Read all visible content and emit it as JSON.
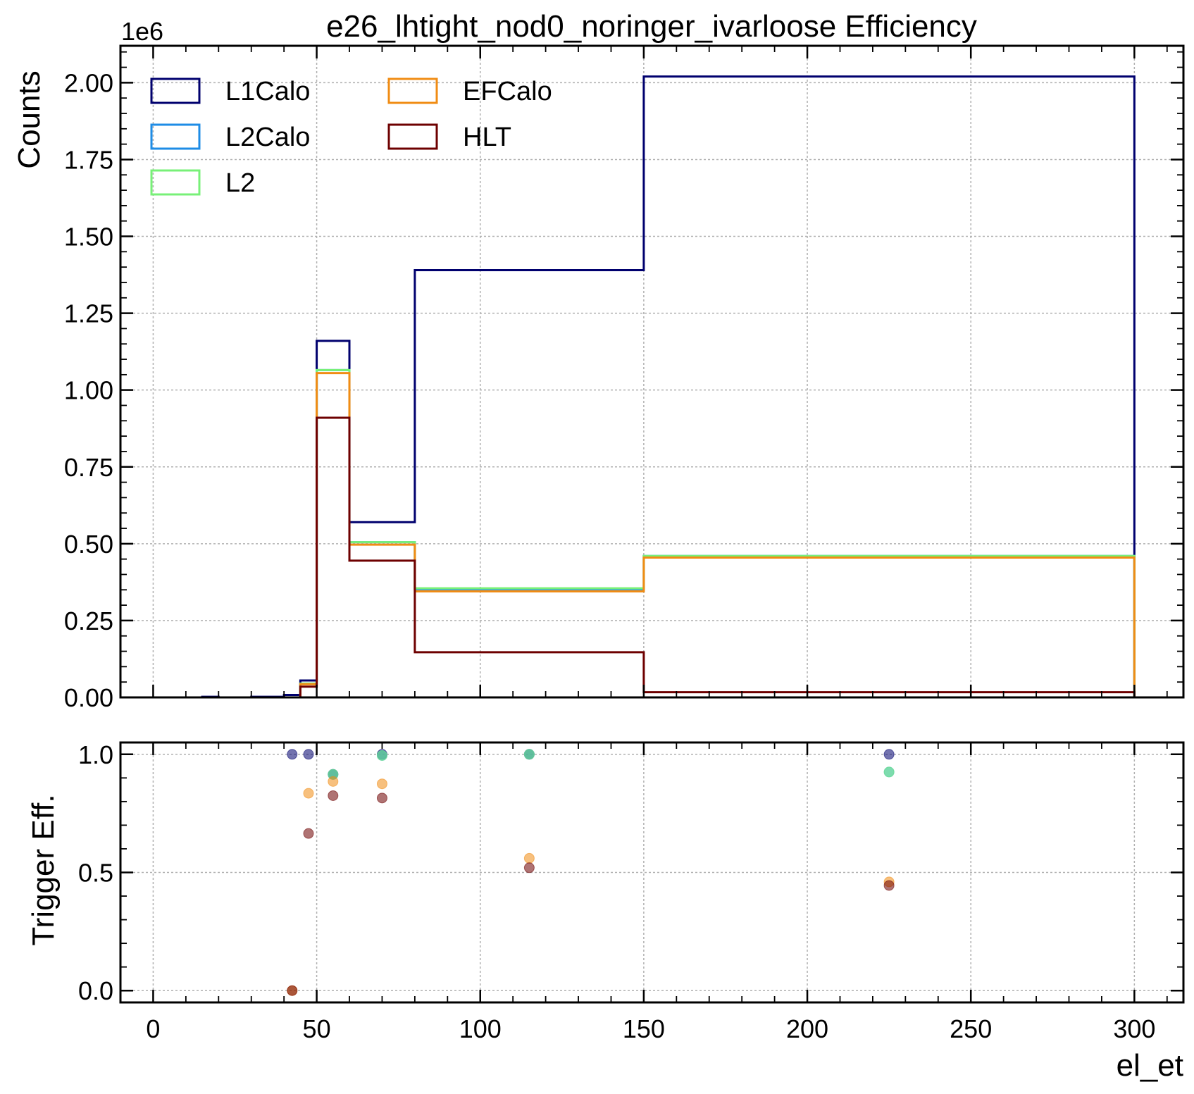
{
  "chart_data": [
    {
      "type": "histogram",
      "title": "e26_lhtight_nod0_noringer_ivarloose Efficiency",
      "ylabel": "Counts",
      "y_scale_label": "1e6",
      "y_multiplier": 1000000,
      "xlim": [
        -10,
        315
      ],
      "ylim": [
        0,
        2.12
      ],
      "yticks": [
        "0.00",
        "0.25",
        "0.50",
        "0.75",
        "1.00",
        "1.25",
        "1.50",
        "1.75",
        "2.00"
      ],
      "grid": true,
      "legend_position": "top-left",
      "bin_edges": [
        0,
        5,
        10,
        15,
        20,
        25,
        30,
        35,
        40,
        45,
        50,
        60,
        80,
        150,
        300
      ],
      "series": [
        {
          "name": "L1Calo",
          "color": "#00006e",
          "values": [
            0,
            0,
            0,
            0.002,
            0,
            0,
            0.002,
            0.002,
            0.008,
            0.055,
            1.16,
            0.57,
            1.39,
            2.02
          ]
        },
        {
          "name": "L2Calo",
          "color": "#1e8ce6",
          "values": [
            0,
            0,
            0,
            0,
            0,
            0,
            0,
            0,
            0,
            0.045,
            1.065,
            0.505,
            0.352,
            0.46
          ]
        },
        {
          "name": "L2",
          "color": "#78f078",
          "values": [
            0,
            0,
            0,
            0,
            0,
            0,
            0,
            0,
            0,
            0.045,
            1.065,
            0.505,
            0.355,
            0.46
          ]
        },
        {
          "name": "EFCalo",
          "color": "#f08c14",
          "values": [
            0,
            0,
            0,
            0,
            0,
            0,
            0,
            0,
            0,
            0.043,
            1.055,
            0.497,
            0.345,
            0.455
          ]
        },
        {
          "name": "HLT",
          "color": "#6e0000",
          "values": [
            0,
            0,
            0,
            0,
            0,
            0,
            0,
            0,
            0,
            0.035,
            0.91,
            0.445,
            0.147,
            0.017
          ]
        }
      ]
    },
    {
      "type": "scatter",
      "xlabel": "el_et",
      "ylabel": "Trigger Eff.",
      "xlim": [
        -10,
        315
      ],
      "ylim": [
        -0.05,
        1.05
      ],
      "xticks": [
        "0",
        "50",
        "100",
        "150",
        "200",
        "250",
        "300"
      ],
      "yticks": [
        "0.0",
        "0.5",
        "1.0"
      ],
      "grid": true,
      "series": [
        {
          "name": "L1Calo",
          "color": "#00006e",
          "points": [
            [
              42.5,
              1.0
            ],
            [
              47.5,
              1.0
            ],
            [
              55,
              0.915
            ],
            [
              70,
              1.0
            ],
            [
              115,
              1.0
            ],
            [
              225,
              1.0
            ]
          ]
        },
        {
          "name": "L2Calo",
          "color": "#1e8ce6",
          "points": [
            [
              55,
              0.915
            ],
            [
              70,
              0.995
            ],
            [
              115,
              1.0
            ],
            [
              225,
              0.925
            ]
          ]
        },
        {
          "name": "L2",
          "color": "#78f078",
          "points": [
            [
              55,
              0.915
            ],
            [
              70,
              0.995
            ],
            [
              115,
              1.0
            ],
            [
              225,
              0.925
            ]
          ]
        },
        {
          "name": "EFCalo",
          "color": "#f08c14",
          "points": [
            [
              42.5,
              0.0
            ],
            [
              47.5,
              0.835
            ],
            [
              55,
              0.885
            ],
            [
              70,
              0.875
            ],
            [
              115,
              0.56
            ],
            [
              225,
              0.46
            ]
          ]
        },
        {
          "name": "HLT",
          "color": "#6e0000",
          "points": [
            [
              42.5,
              0.0
            ],
            [
              47.5,
              0.665
            ],
            [
              55,
              0.825
            ],
            [
              70,
              0.815
            ],
            [
              115,
              0.52
            ],
            [
              225,
              0.445
            ]
          ]
        }
      ]
    }
  ]
}
